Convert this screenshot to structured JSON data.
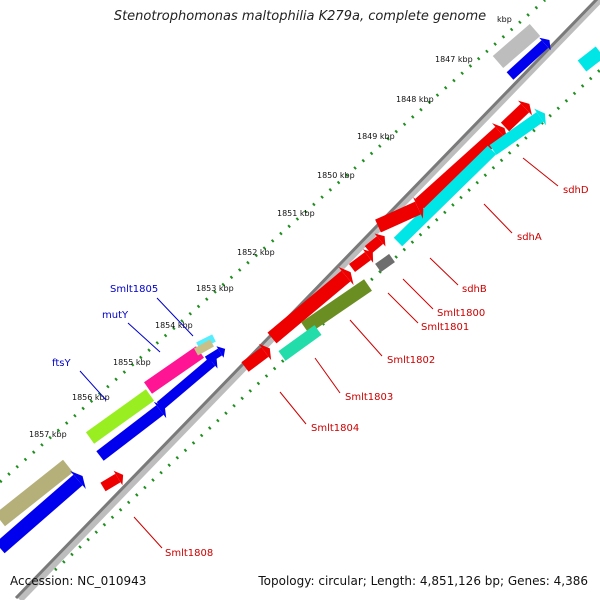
{
  "title": "Stenotrophomonas maltophilia K279a, complete genome",
  "footer": {
    "accession": "Accession: NC_010943",
    "topology": "Topology: circular; Length: 4,851,126 bp; Genes: 4,386"
  },
  "colors": {
    "backbone": "#7a7a7a",
    "ticks": "#1e8f1e",
    "reverse_label": "#cc0000",
    "forward_label": "#0000cc"
  },
  "scale_labels": [
    {
      "text": "kbp"
    },
    {
      "text": "1847 kbp"
    },
    {
      "text": "1848 kbp"
    },
    {
      "text": "1849 kbp"
    },
    {
      "text": "1850 kbp"
    },
    {
      "text": "1851 kbp"
    },
    {
      "text": "1852 kbp"
    },
    {
      "text": "1853 kbp"
    },
    {
      "text": "1854 kbp"
    },
    {
      "text": "1855 kbp"
    },
    {
      "text": "1856 kbp"
    },
    {
      "text": "1857 kbp"
    }
  ],
  "genes": [
    {
      "name": "sdhD",
      "strand": "reverse",
      "color": "#ff0000"
    },
    {
      "name": "sdhA",
      "strand": "reverse",
      "color": "#ff0000"
    },
    {
      "name": "sdhB",
      "strand": "reverse",
      "color": "#ff0000"
    },
    {
      "name": "Smlt1800",
      "strand": "reverse",
      "color": "#ff0000"
    },
    {
      "name": "Smlt1801",
      "strand": "reverse",
      "color": "#ff0000"
    },
    {
      "name": "Smlt1802",
      "strand": "reverse",
      "color": "#ff0000"
    },
    {
      "name": "Smlt1803",
      "strand": "reverse",
      "color": "#ff0000"
    },
    {
      "name": "Smlt1804",
      "strand": "reverse",
      "color": "#ff0000"
    },
    {
      "name": "Smlt1805",
      "strand": "forward",
      "color": "#0000ff"
    },
    {
      "name": "mutY",
      "strand": "forward",
      "color": "#0000ff"
    },
    {
      "name": "ftsY",
      "strand": "forward",
      "color": "#0000ff"
    },
    {
      "name": "Smlt1808",
      "strand": "reverse",
      "color": "#ff0000"
    }
  ],
  "feature_colors": {
    "gray": "#bdbdbd",
    "blue": "#0000ee",
    "red": "#ee0000",
    "cyan": "#00e5e5",
    "dark_gray": "#6e6e6e",
    "olive": "#6b8e23",
    "seafoam": "#22ddaa",
    "pink": "#ff1493",
    "khaki": "#c8c088",
    "lime": "#99ee22",
    "olive_khaki": "#b5b07a",
    "light_cyan": "#55eeff"
  }
}
